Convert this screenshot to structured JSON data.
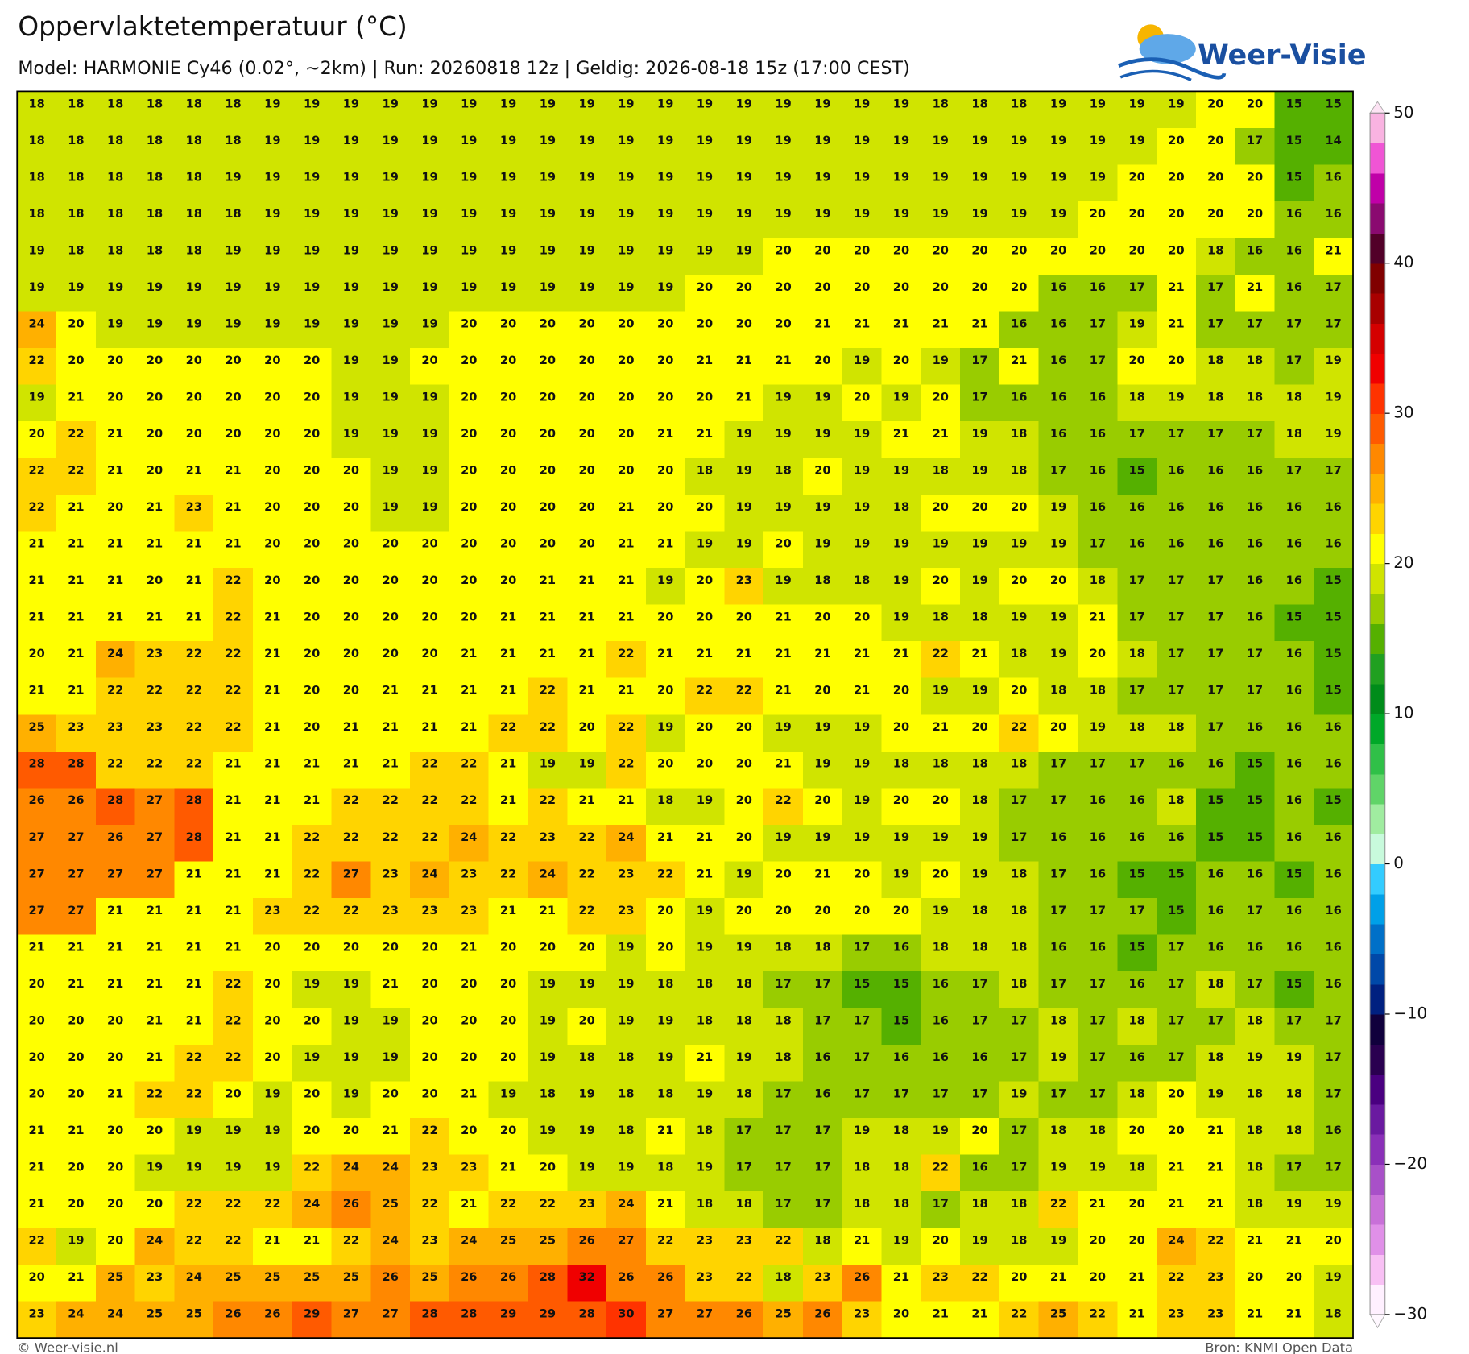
{
  "chart_data": {
    "type": "heatmap",
    "title": "Oppervlaktetemperatuur (°C)",
    "subtitle": "Model: HARMONIE Cy46 (0.02°, ~2km)  |  Run: 20260818 12z  |  Geldig: 2026-08-18 15z (17:00 CEST)",
    "values": [
      [
        18,
        18,
        18,
        18,
        18,
        18,
        19,
        19,
        19,
        19,
        19,
        19,
        19,
        19,
        19,
        19,
        19,
        19,
        19,
        19,
        19,
        19,
        19,
        18,
        18,
        18,
        19,
        19,
        19,
        19,
        20,
        20,
        15,
        15
      ],
      [
        18,
        18,
        18,
        18,
        18,
        18,
        19,
        19,
        19,
        19,
        19,
        19,
        19,
        19,
        19,
        19,
        19,
        19,
        19,
        19,
        19,
        19,
        19,
        19,
        19,
        19,
        19,
        19,
        19,
        20,
        20,
        17,
        15,
        14
      ],
      [
        18,
        18,
        18,
        18,
        18,
        19,
        19,
        19,
        19,
        19,
        19,
        19,
        19,
        19,
        19,
        19,
        19,
        19,
        19,
        19,
        19,
        19,
        19,
        19,
        19,
        19,
        19,
        19,
        20,
        20,
        20,
        20,
        15,
        16
      ],
      [
        18,
        18,
        18,
        18,
        18,
        18,
        19,
        19,
        19,
        19,
        19,
        19,
        19,
        19,
        19,
        19,
        19,
        19,
        19,
        19,
        19,
        19,
        19,
        19,
        19,
        19,
        19,
        20,
        20,
        20,
        20,
        20,
        16,
        16
      ],
      [
        19,
        18,
        18,
        18,
        18,
        19,
        19,
        19,
        19,
        19,
        19,
        19,
        19,
        19,
        19,
        19,
        19,
        19,
        19,
        20,
        20,
        20,
        20,
        20,
        20,
        20,
        20,
        20,
        20,
        20,
        18,
        16,
        16,
        21
      ],
      [
        19,
        19,
        19,
        19,
        19,
        19,
        19,
        19,
        19,
        19,
        19,
        19,
        19,
        19,
        19,
        19,
        19,
        20,
        20,
        20,
        20,
        20,
        20,
        20,
        20,
        20,
        16,
        16,
        17,
        21,
        17,
        21,
        16,
        17
      ],
      [
        24,
        20,
        19,
        19,
        19,
        19,
        19,
        19,
        19,
        19,
        19,
        20,
        20,
        20,
        20,
        20,
        20,
        20,
        20,
        20,
        21,
        21,
        21,
        21,
        21,
        16,
        16,
        17,
        19,
        21,
        17,
        17,
        17,
        17
      ],
      [
        22,
        20,
        20,
        20,
        20,
        20,
        20,
        20,
        19,
        19,
        20,
        20,
        20,
        20,
        20,
        20,
        20,
        21,
        21,
        21,
        20,
        19,
        20,
        19,
        17,
        21,
        16,
        17,
        20,
        20,
        18,
        18,
        17,
        19
      ],
      [
        19,
        21,
        20,
        20,
        20,
        20,
        20,
        20,
        19,
        19,
        19,
        20,
        20,
        20,
        20,
        20,
        20,
        20,
        21,
        19,
        19,
        20,
        19,
        20,
        17,
        16,
        16,
        16,
        18,
        19,
        18,
        18,
        18,
        19
      ],
      [
        20,
        22,
        21,
        20,
        20,
        20,
        20,
        20,
        19,
        19,
        19,
        20,
        20,
        20,
        20,
        20,
        21,
        21,
        19,
        19,
        19,
        19,
        21,
        21,
        19,
        18,
        16,
        16,
        17,
        17,
        17,
        17,
        18,
        19
      ],
      [
        22,
        22,
        21,
        20,
        21,
        21,
        20,
        20,
        20,
        19,
        19,
        20,
        20,
        20,
        20,
        20,
        20,
        18,
        19,
        18,
        20,
        19,
        19,
        18,
        19,
        18,
        17,
        16,
        15,
        16,
        16,
        16,
        17,
        17
      ],
      [
        22,
        21,
        20,
        21,
        23,
        21,
        20,
        20,
        20,
        19,
        19,
        20,
        20,
        20,
        20,
        21,
        20,
        20,
        19,
        19,
        19,
        19,
        18,
        20,
        20,
        20,
        19,
        16,
        16,
        16,
        16,
        16,
        16,
        16
      ],
      [
        21,
        21,
        21,
        21,
        21,
        21,
        20,
        20,
        20,
        20,
        20,
        20,
        20,
        20,
        20,
        21,
        21,
        19,
        19,
        20,
        19,
        19,
        19,
        19,
        19,
        19,
        19,
        17,
        16,
        16,
        16,
        16,
        16,
        16
      ],
      [
        21,
        21,
        21,
        20,
        21,
        22,
        20,
        20,
        20,
        20,
        20,
        20,
        20,
        21,
        21,
        21,
        19,
        20,
        23,
        19,
        18,
        18,
        19,
        20,
        19,
        20,
        20,
        18,
        17,
        17,
        17,
        16,
        16,
        15
      ],
      [
        21,
        21,
        21,
        21,
        21,
        22,
        21,
        20,
        20,
        20,
        20,
        20,
        21,
        21,
        21,
        21,
        20,
        20,
        20,
        21,
        20,
        20,
        19,
        18,
        18,
        19,
        19,
        21,
        17,
        17,
        17,
        16,
        15,
        15
      ],
      [
        20,
        21,
        24,
        23,
        22,
        22,
        21,
        20,
        20,
        20,
        20,
        21,
        21,
        21,
        21,
        22,
        21,
        21,
        21,
        21,
        21,
        21,
        21,
        22,
        21,
        18,
        19,
        20,
        18,
        17,
        17,
        17,
        16,
        15
      ],
      [
        21,
        21,
        22,
        22,
        22,
        22,
        21,
        20,
        20,
        21,
        21,
        21,
        21,
        22,
        21,
        21,
        20,
        22,
        22,
        21,
        20,
        21,
        20,
        19,
        19,
        20,
        18,
        18,
        17,
        17,
        17,
        17,
        16,
        15
      ],
      [
        25,
        23,
        23,
        23,
        22,
        22,
        21,
        20,
        21,
        21,
        21,
        21,
        22,
        22,
        20,
        22,
        19,
        20,
        20,
        19,
        19,
        19,
        20,
        21,
        20,
        22,
        20,
        19,
        18,
        18,
        17,
        16,
        16,
        16
      ],
      [
        28,
        28,
        22,
        22,
        22,
        21,
        21,
        21,
        21,
        21,
        22,
        22,
        21,
        19,
        19,
        22,
        20,
        20,
        20,
        21,
        19,
        19,
        18,
        18,
        18,
        18,
        17,
        17,
        17,
        16,
        16,
        15,
        16,
        16
      ],
      [
        26,
        26,
        28,
        27,
        28,
        21,
        21,
        21,
        22,
        22,
        22,
        22,
        21,
        22,
        21,
        21,
        18,
        19,
        20,
        22,
        20,
        19,
        20,
        20,
        18,
        17,
        17,
        16,
        16,
        18,
        15,
        15,
        16,
        15
      ],
      [
        27,
        27,
        26,
        27,
        28,
        21,
        21,
        22,
        22,
        22,
        22,
        24,
        22,
        23,
        22,
        24,
        21,
        21,
        20,
        19,
        19,
        19,
        19,
        19,
        19,
        17,
        16,
        16,
        16,
        16,
        15,
        15,
        16,
        16
      ],
      [
        27,
        27,
        27,
        27,
        21,
        21,
        21,
        22,
        27,
        23,
        24,
        23,
        22,
        24,
        22,
        23,
        22,
        21,
        19,
        20,
        21,
        20,
        19,
        20,
        19,
        18,
        17,
        16,
        15,
        15,
        16,
        16,
        15,
        16
      ],
      [
        27,
        27,
        21,
        21,
        21,
        21,
        23,
        22,
        22,
        23,
        23,
        23,
        21,
        21,
        22,
        23,
        20,
        19,
        20,
        20,
        20,
        20,
        20,
        19,
        18,
        18,
        17,
        17,
        17,
        15,
        16,
        17,
        16,
        16
      ],
      [
        21,
        21,
        21,
        21,
        21,
        21,
        20,
        20,
        20,
        20,
        20,
        21,
        20,
        20,
        20,
        19,
        20,
        19,
        19,
        18,
        18,
        17,
        16,
        18,
        18,
        18,
        16,
        16,
        15,
        17,
        16,
        16,
        16,
        16
      ],
      [
        20,
        21,
        21,
        21,
        21,
        22,
        20,
        19,
        19,
        21,
        20,
        20,
        20,
        19,
        19,
        19,
        18,
        18,
        18,
        17,
        17,
        15,
        15,
        16,
        17,
        18,
        17,
        17,
        16,
        17,
        18,
        17,
        15,
        16
      ],
      [
        20,
        20,
        20,
        21,
        21,
        22,
        20,
        20,
        19,
        19,
        20,
        20,
        20,
        19,
        20,
        19,
        19,
        18,
        18,
        18,
        17,
        17,
        15,
        16,
        17,
        17,
        18,
        17,
        18,
        17,
        17,
        18,
        17,
        17
      ],
      [
        20,
        20,
        20,
        21,
        22,
        22,
        20,
        19,
        19,
        19,
        20,
        20,
        20,
        19,
        18,
        18,
        19,
        21,
        19,
        18,
        16,
        17,
        16,
        16,
        16,
        17,
        19,
        17,
        16,
        17,
        18,
        19,
        19,
        17
      ],
      [
        20,
        20,
        21,
        22,
        22,
        20,
        19,
        20,
        19,
        20,
        20,
        21,
        19,
        18,
        19,
        18,
        18,
        19,
        18,
        17,
        16,
        17,
        17,
        17,
        17,
        19,
        17,
        17,
        18,
        20,
        19,
        18,
        18,
        17
      ],
      [
        21,
        21,
        20,
        20,
        19,
        19,
        19,
        20,
        20,
        21,
        22,
        20,
        20,
        19,
        19,
        18,
        21,
        18,
        17,
        17,
        17,
        19,
        18,
        19,
        20,
        17,
        18,
        18,
        20,
        20,
        21,
        18,
        18,
        16
      ],
      [
        21,
        20,
        20,
        19,
        19,
        19,
        19,
        22,
        24,
        24,
        23,
        23,
        21,
        20,
        19,
        19,
        18,
        19,
        17,
        17,
        17,
        18,
        18,
        22,
        16,
        17,
        19,
        19,
        18,
        21,
        21,
        18,
        17,
        17
      ],
      [
        21,
        20,
        20,
        20,
        22,
        22,
        22,
        24,
        26,
        25,
        22,
        21,
        22,
        22,
        23,
        24,
        21,
        18,
        18,
        17,
        17,
        18,
        18,
        17,
        18,
        18,
        22,
        21,
        20,
        21,
        21,
        18,
        19,
        19
      ],
      [
        22,
        19,
        20,
        24,
        22,
        22,
        21,
        21,
        22,
        24,
        23,
        24,
        25,
        25,
        26,
        27,
        22,
        23,
        23,
        22,
        18,
        21,
        19,
        20,
        19,
        18,
        19,
        20,
        20,
        24,
        22,
        21,
        21,
        20
      ],
      [
        20,
        21,
        25,
        23,
        24,
        25,
        25,
        25,
        25,
        26,
        25,
        26,
        26,
        28,
        32,
        26,
        26,
        23,
        22,
        18,
        23,
        26,
        21,
        23,
        22,
        20,
        21,
        20,
        21,
        22,
        23,
        20,
        20,
        19
      ],
      [
        23,
        24,
        24,
        25,
        25,
        26,
        26,
        29,
        27,
        27,
        28,
        28,
        29,
        29,
        28,
        30,
        27,
        27,
        26,
        25,
        26,
        23,
        20,
        21,
        21,
        22,
        25,
        22,
        21,
        23,
        23,
        21,
        21,
        18
      ]
    ],
    "colorbar": {
      "lim": [
        -30,
        50
      ],
      "ticks": [
        50,
        40,
        30,
        20,
        10,
        0,
        {
          "value": -10,
          "label": "−10"
        },
        {
          "value": -20,
          "label": "−20"
        },
        {
          "value": -30,
          "label": "−30"
        }
      ],
      "colors": [
        "#fff0ff",
        "#f8c0f4",
        "#e090e8",
        "#c870d8",
        "#a850c8",
        "#8a30b8",
        "#6a1aa0",
        "#4a0080",
        "#2a0050",
        "#10003c",
        "#002080",
        "#0048a8",
        "#0070c8",
        "#00a0e8",
        "#33ccff",
        "#c8fadc",
        "#a0eca0",
        "#60d468",
        "#30c048",
        "#00a828",
        "#008c1a",
        "#20a020",
        "#55b000",
        "#99cc00",
        "#d0e400",
        "#ffff00",
        "#ffd400",
        "#ffb000",
        "#ff8800",
        "#ff5a00",
        "#ff3300",
        "#f00000",
        "#d40000",
        "#a80000",
        "#800000",
        "#520028",
        "#8a0a70",
        "#c000a8",
        "#f055d5",
        "#f9b3e1"
      ]
    }
  },
  "logo": "Weer-Visie",
  "footer_left": "© Weer-visie.nl",
  "footer_right": "Bron: KNMI Open Data"
}
